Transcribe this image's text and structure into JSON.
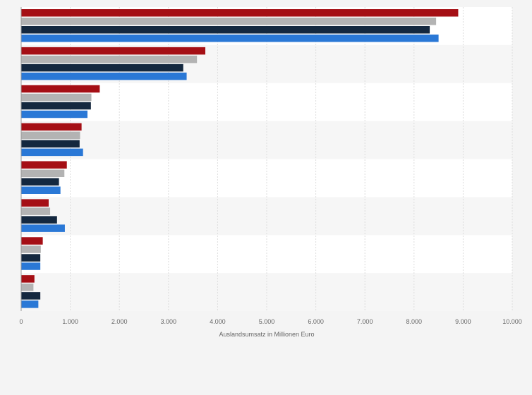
{
  "chart_data": {
    "type": "bar",
    "orientation": "horizontal",
    "title": "",
    "xlabel": "Auslandsumsatz in Millionen Euro",
    "ylabel": "",
    "xlim": [
      0,
      10000
    ],
    "x_ticks": [
      {
        "value": 0,
        "label": "0"
      },
      {
        "value": 1000,
        "label": "1.000"
      },
      {
        "value": 2000,
        "label": "2.000"
      },
      {
        "value": 3000,
        "label": "3.000"
      },
      {
        "value": 4000,
        "label": "4.000"
      },
      {
        "value": 5000,
        "label": "5.000"
      },
      {
        "value": 6000,
        "label": "6.000"
      },
      {
        "value": 7000,
        "label": "7.000"
      },
      {
        "value": 8000,
        "label": "8.000"
      },
      {
        "value": 9000,
        "label": "9.000"
      },
      {
        "value": 10000,
        "label": "10.000"
      }
    ],
    "grid": "vertical",
    "legend": "none",
    "category_labels_visible": false,
    "series": [
      {
        "color": "#a50f15",
        "values": [
          8900,
          3750,
          1600,
          1230,
          930,
          560,
          440,
          270
        ]
      },
      {
        "color": "#b3b3b3",
        "values": [
          8450,
          3580,
          1430,
          1200,
          880,
          590,
          400,
          250
        ]
      },
      {
        "color": "#14283f",
        "values": [
          8320,
          3300,
          1420,
          1190,
          770,
          730,
          390,
          390
        ]
      },
      {
        "color": "#2a78d6",
        "values": [
          8500,
          3370,
          1350,
          1260,
          800,
          890,
          390,
          350
        ]
      }
    ]
  }
}
